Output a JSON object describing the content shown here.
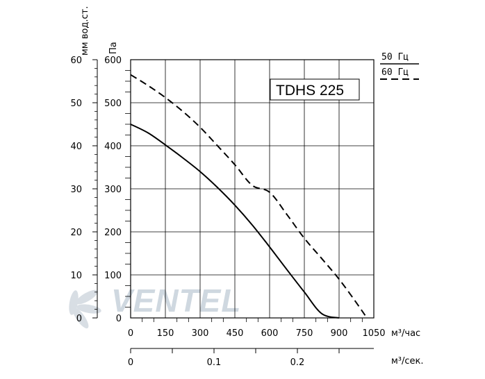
{
  "chart_data": {
    "type": "line",
    "model_label": "TDHS 225",
    "watermark": "VENTEL",
    "xlabel_bottom_1": "м³/час",
    "xlabel_bottom_2": "м³/сек.",
    "ylabel_left": "мм вод.ст.",
    "ylabel_right": "Па",
    "xlim": [
      0,
      1050
    ],
    "ylim": [
      0,
      600
    ],
    "x_ticks": [
      "0",
      "150",
      "300",
      "450",
      "600",
      "750",
      "900",
      "1050"
    ],
    "x2_ticks": [
      "0",
      "0.1",
      "0.2"
    ],
    "y_ticks_pa": [
      "0",
      "100",
      "200",
      "300",
      "400",
      "500",
      "600"
    ],
    "y_ticks_mm": [
      "0",
      "10",
      "20",
      "30",
      "40",
      "50",
      "60"
    ],
    "grid": true,
    "legend": [
      {
        "label": "50 Гц",
        "style": "solid"
      },
      {
        "label": "60 Гц",
        "style": "dashed"
      }
    ],
    "series": [
      {
        "name": "50 Гц",
        "style": "solid",
        "x": [
          0,
          75,
          150,
          225,
          300,
          375,
          450,
          525,
          600,
          675,
          750,
          825,
          900
        ],
        "y": [
          450,
          430,
          402,
          372,
          340,
          303,
          262,
          216,
          165,
          112,
          60,
          10,
          0
        ]
      },
      {
        "name": "60 Гц",
        "style": "dashed",
        "x": [
          0,
          75,
          150,
          225,
          300,
          375,
          450,
          525,
          600,
          675,
          750,
          825,
          900,
          975,
          1020
        ],
        "y": [
          565,
          540,
          512,
          480,
          443,
          400,
          356,
          308,
          292,
          240,
          185,
          138,
          90,
          35,
          0
        ]
      }
    ]
  }
}
